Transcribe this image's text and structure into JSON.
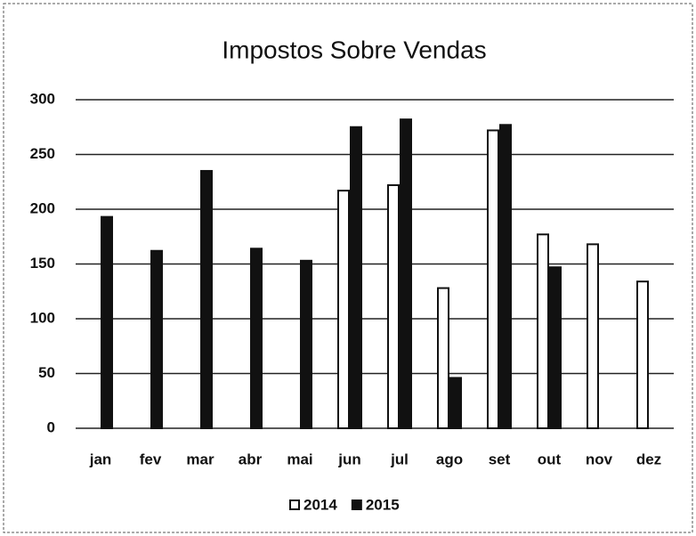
{
  "chart_data": {
    "type": "bar",
    "title": "Impostos Sobre Vendas",
    "categories": [
      "jan",
      "fev",
      "mar",
      "abr",
      "mai",
      "jun",
      "jul",
      "ago",
      "set",
      "out",
      "nov",
      "dez"
    ],
    "series": [
      {
        "name": "2014",
        "color": "#ffffff",
        "values": [
          null,
          null,
          null,
          null,
          null,
          217,
          222,
          128,
          272,
          177,
          168,
          134
        ]
      },
      {
        "name": "2015",
        "color": "#111111",
        "values": [
          193,
          162,
          235,
          164,
          153,
          275,
          282,
          46,
          277,
          147,
          null,
          null
        ]
      }
    ],
    "ylim": [
      0,
      300
    ],
    "yticks": [
      0,
      50,
      100,
      150,
      200,
      250,
      300
    ],
    "grid": true,
    "legend": "bottom"
  }
}
